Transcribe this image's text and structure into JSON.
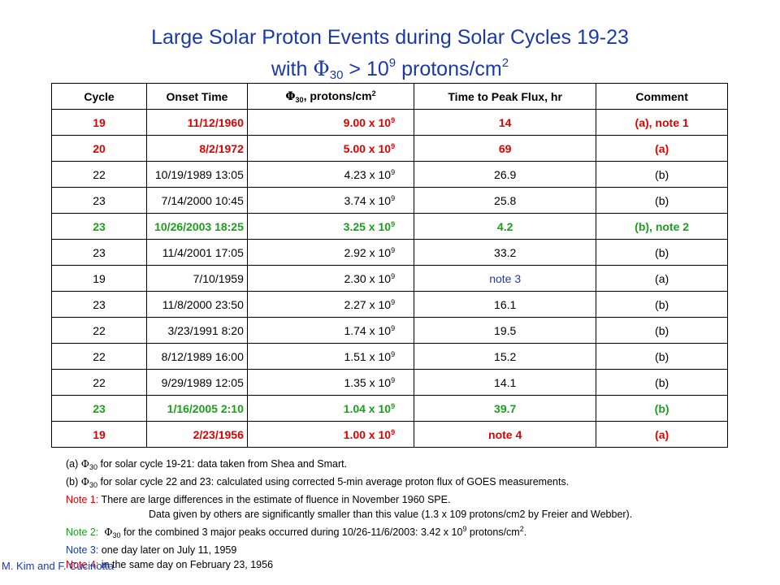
{
  "title": {
    "line1": "Large Solar Proton Events during Solar Cycles 19-23",
    "line2_with": "with ",
    "line2_phi": "Φ",
    "line2_sub": "30",
    "line2_mid": " > 10",
    "line2_exp": "9",
    "line2_unit": " protons/cm",
    "line2_unit_exp": "2"
  },
  "table": {
    "headers": {
      "cycle": "Cycle",
      "onset": "Onset Time",
      "phi_symbol": "Φ",
      "phi_sub": "30",
      "phi_text": ", protons/cm",
      "phi_exp": "2",
      "ttp": "Time to Peak Flux, hr",
      "comment": "Comment"
    },
    "rows": [
      {
        "cycle": "19",
        "onset": "11/12/1960",
        "phi": "9.00 x 10",
        "phi_exp": "9",
        "ttp": "14",
        "comment": "(a), note 1"
      },
      {
        "cycle": "20",
        "onset": "8/2/1972",
        "phi": "5.00 x 10",
        "phi_exp": "9",
        "ttp": "69",
        "comment": "(a)"
      },
      {
        "cycle": "22",
        "onset": "10/19/1989 13:05",
        "phi": "4.23 x 10",
        "phi_exp": "9",
        "ttp": "26.9",
        "comment": "(b)"
      },
      {
        "cycle": "23",
        "onset": "7/14/2000 10:45",
        "phi": "3.74 x 10",
        "phi_exp": "9",
        "ttp": "25.8",
        "comment": "(b)"
      },
      {
        "cycle": "23",
        "onset": "10/26/2003 18:25",
        "phi": "3.25 x 10",
        "phi_exp": "9",
        "ttp": "4.2",
        "comment": "(b), note 2"
      },
      {
        "cycle": "23",
        "onset": "11/4/2001 17:05",
        "phi": "2.92 x 10",
        "phi_exp": "9",
        "ttp": "33.2",
        "comment": "(b)"
      },
      {
        "cycle": "19",
        "onset": "7/10/1959",
        "phi": "2.30 x 10",
        "phi_exp": "9",
        "ttp": "note 3",
        "comment": "(a)"
      },
      {
        "cycle": "23",
        "onset": "11/8/2000 23:50",
        "phi": "2.27 x 10",
        "phi_exp": "9",
        "ttp": "16.1",
        "comment": "(b)"
      },
      {
        "cycle": "22",
        "onset": "3/23/1991 8:20",
        "phi": "1.74 x 10",
        "phi_exp": "9",
        "ttp": "19.5",
        "comment": "(b)"
      },
      {
        "cycle": "22",
        "onset": "8/12/1989 16:00",
        "phi": "1.51 x 10",
        "phi_exp": "9",
        "ttp": "15.2",
        "comment": "(b)"
      },
      {
        "cycle": "22",
        "onset": "9/29/1989 12:05",
        "phi": "1.35 x 10",
        "phi_exp": "9",
        "ttp": "14.1",
        "comment": "(b)"
      },
      {
        "cycle": "23",
        "onset": "1/16/2005 2:10",
        "phi": "1.04 x 10",
        "phi_exp": "9",
        "ttp": "39.7",
        "comment": "(b)"
      },
      {
        "cycle": "19",
        "onset": "2/23/1956",
        "phi": "1.00 x 10",
        "phi_exp": "9",
        "ttp": "note 4",
        "comment": "(a)"
      }
    ]
  },
  "notes": {
    "a_prefix": "(a) ",
    "a_phi": "Φ",
    "a_sub": "30",
    "a_text": " for solar cycle 19-21: data taken from Shea and Smart.",
    "b_prefix": "(b) ",
    "b_phi": "Φ",
    "b_sub": "30",
    "b_text": " for solar cycle 22 and 23: calculated using corrected 5-min average proton flux of GOES measurements.",
    "note1_label": "Note 1:",
    "note1_text": "  There are large differences in the estimate of fluence in November 1960 SPE.",
    "note1_text2": "Data given by others are significantly smaller than this value (1.3 x 109 protons/cm2 by Freier and Webber).",
    "note2_label": "Note 2:",
    "note2_phi": "Φ",
    "note2_sub": "30",
    "note2_text": " for the combined 3 major peaks occurred during 10/26-11/6/2003: 3.42 x 10",
    "note2_exp": "9",
    "note2_tail": " protons/cm",
    "note2_tail_exp": "2",
    "note2_end": ".",
    "note3_label": "Note 3:",
    "note3_text": "  one day later on July 11, 1959",
    "note4_label": "Note 4:",
    "note4_text": "  in the same day on February 23, 1956"
  },
  "author": "M. Kim and F. Cucinotta",
  "colors": {
    "title": "#1a3aa8",
    "red_rows": "#e00000",
    "green_rows": "#1aa11a",
    "note3_blue": "#1a3aa8"
  }
}
